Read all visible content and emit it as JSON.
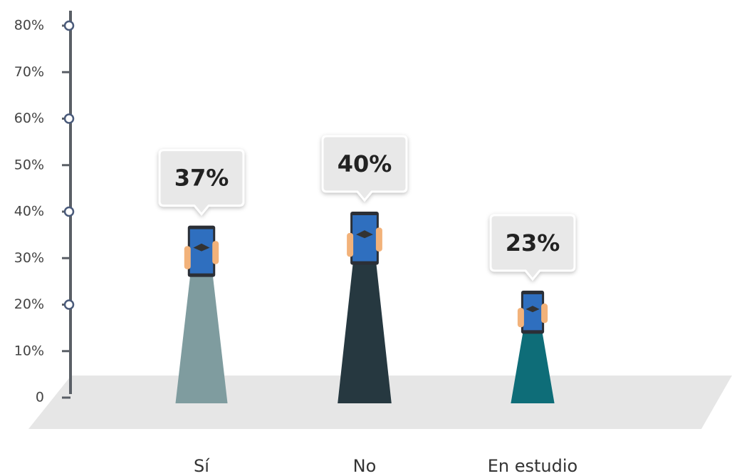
{
  "chart_data": {
    "type": "pictograph",
    "categories": [
      "Sí",
      "No",
      "En estudio"
    ],
    "values": [
      37,
      40,
      23
    ],
    "value_labels": [
      "37%",
      "40%",
      "23%"
    ],
    "colors": [
      "#7f9c9f",
      "#263840",
      "#0e6d78"
    ],
    "ylim": [
      0,
      80
    ],
    "yticks": [
      0,
      {
        "value": 10,
        "label": "10%"
      },
      {
        "value": 20,
        "label": "20%"
      },
      {
        "value": 30,
        "label": "30%"
      },
      {
        "value": 40,
        "label": "40%"
      },
      {
        "value": 50,
        "label": "50%"
      },
      {
        "value": 60,
        "label": "60%"
      },
      {
        "value": 70,
        "label": "70%"
      },
      {
        "value": 80,
        "label": "80%"
      }
    ]
  }
}
